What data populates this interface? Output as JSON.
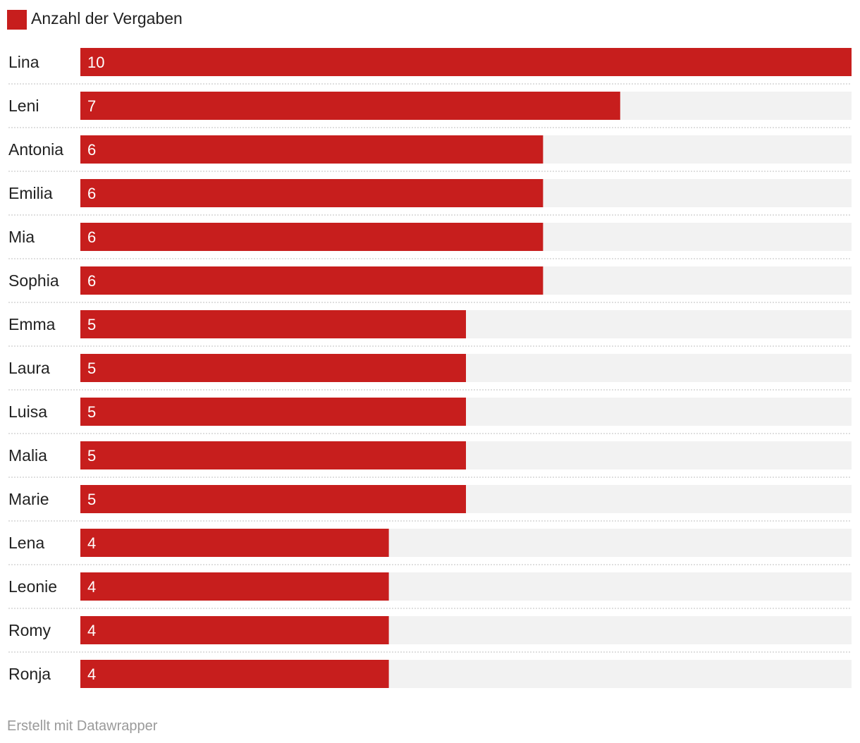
{
  "chart_data": {
    "type": "bar",
    "orientation": "horizontal",
    "categories": [
      "Lina",
      "Leni",
      "Antonia",
      "Emilia",
      "Mia",
      "Sophia",
      "Emma",
      "Laura",
      "Luisa",
      "Malia",
      "Marie",
      "Lena",
      "Leonie",
      "Romy",
      "Ronja"
    ],
    "series": [
      {
        "name": "Anzahl der Vergaben",
        "values": [
          10,
          7,
          6,
          6,
          6,
          6,
          5,
          5,
          5,
          5,
          5,
          4,
          4,
          4,
          4
        ],
        "color": "#c71e1d"
      }
    ],
    "xlim": [
      0,
      10
    ],
    "background_bar_color": "#f2f2f2",
    "grid": false,
    "legend_position": "top-left",
    "data_labels": "inside-start"
  },
  "footer": {
    "credit": "Erstellt mit Datawrapper"
  }
}
